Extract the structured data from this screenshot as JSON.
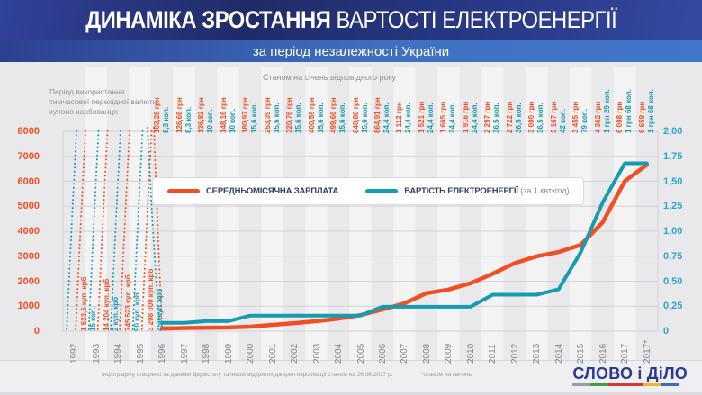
{
  "header": {
    "title_bold": "ДИНАМІКА ЗРОСТАННЯ",
    "title_rest": " ВАРТОСТІ ЕЛЕКТРОЕНЕРГІЇ",
    "subtitle": "за період незалежності України"
  },
  "annotations": {
    "transition_note": "Період використання тимчасової перехідної валюти купоно-карбованця",
    "as_of_note": "Станом на січень відповідного року",
    "footnote": "*станом на квітень",
    "source": "Інфографіку створено за даними Держстату та інших відкритих джерел інформації станом на 26.06.2017 р."
  },
  "legend": {
    "salary": "СЕРЕДНЬОМІСЯЧНА ЗАРПЛАТА",
    "electricity": "ВАРТІСТЬ ЕЛЕКТРОЕНЕРГІЇ",
    "electricity_unit": " (за 1 квт•год)"
  },
  "logo": {
    "text": "СЛОВО і ДіЛО",
    "color": "#2b3990",
    "stripe_colors": [
      "#999da0",
      "#43a047",
      "#d4393d",
      "#d4393d",
      "#f0b32e",
      "#3c6eb5"
    ]
  },
  "colors": {
    "salary": "#f04f23",
    "electricity": "#169cae",
    "header_navy": "#202b68",
    "subtitle_blue": "#3f71c1",
    "grid": "#d2d2d7",
    "muted_text": "#8f8f97",
    "left_axis_text": "#f04f23",
    "right_axis_text": "#2da7c7"
  },
  "chart_data": {
    "type": "line",
    "title": "ДИНАМІКА ЗРОСТАННЯ ВАРТОСТІ ЕЛЕКТРОЕНЕРГІЇ за період незалежності України",
    "categories": [
      "1992",
      "1993",
      "1994",
      "1995",
      "1996",
      "1997",
      "1998",
      "1999",
      "2000",
      "2001",
      "2002",
      "2003",
      "2004",
      "2005",
      "2006",
      "2007",
      "2008",
      "2009",
      "2010",
      "2011",
      "2012",
      "2013",
      "2014",
      "2015",
      "2016",
      "2017",
      "2017*"
    ],
    "left_axis": {
      "label_color": "#f04f23",
      "min": 0,
      "max": 8000,
      "ticks": [
        0,
        1000,
        2000,
        3000,
        4000,
        5000,
        6000,
        7000,
        8000
      ]
    },
    "right_axis": {
      "label_color": "#2da7c7",
      "min": 0,
      "max": 2,
      "tick_labels": [
        "0",
        "0,25",
        "0,50",
        "0,75",
        "1,00",
        "1,25",
        "1,50",
        "1,75",
        "2,00"
      ]
    },
    "grid": true,
    "legend_position": "inside-top-center",
    "series": [
      {
        "name": "СЕРЕДНЬОМІСЯЧНА ЗАРПЛАТА",
        "axis": "left",
        "unit": "грн",
        "color": "#f04f23",
        "values": [
          null,
          null,
          null,
          null,
          103.28,
          126.68,
          136.82,
          148.16,
          180.97,
          253.39,
          320.76,
          400.59,
          499.66,
          640.86,
          864.91,
          1112,
          1521,
          1665,
          1916,
          2297,
          2722,
          3000,
          3167,
          3455,
          4362,
          6008,
          6659
        ]
      },
      {
        "name": "ВАРТІСТЬ ЕЛЕКТРОЕНЕРГІЇ (за 1 квт•год)",
        "axis": "right",
        "unit": "грн/кВт·год",
        "color": "#169cae",
        "values": [
          null,
          null,
          null,
          null,
          0.083,
          0.083,
          0.1,
          0.1,
          0.156,
          0.156,
          0.156,
          0.156,
          0.156,
          0.156,
          0.244,
          0.244,
          0.244,
          0.244,
          0.244,
          0.365,
          0.365,
          0.365,
          0.42,
          0.79,
          1.29,
          1.68,
          1.68
        ]
      }
    ],
    "point_labels": [
      {
        "year": "1996",
        "salary": "103,28 грн",
        "electricity": "8,3 коп."
      },
      {
        "year": "1997",
        "salary": "126,68 грн",
        "electricity": "8,3 коп."
      },
      {
        "year": "1998",
        "salary": "136,82 грн",
        "electricity": "10 коп."
      },
      {
        "year": "1999",
        "salary": "148,16 грн",
        "electricity": "10 коп."
      },
      {
        "year": "2000",
        "salary": "180,97 грн",
        "electricity": "15,6 коп."
      },
      {
        "year": "2001",
        "salary": "253,39 грн",
        "electricity": "15,6 коп."
      },
      {
        "year": "2002",
        "salary": "320,76 грн",
        "electricity": "15,6 коп."
      },
      {
        "year": "2003",
        "salary": "400,59 грн",
        "electricity": "15,6 коп."
      },
      {
        "year": "2004",
        "salary": "499,66 грн",
        "electricity": "15,6 коп."
      },
      {
        "year": "2005",
        "salary": "640,86 грн",
        "electricity": "15,6 коп."
      },
      {
        "year": "2006",
        "salary": "864,91 грн",
        "electricity": "24,4 коп."
      },
      {
        "year": "2007",
        "salary": "1 112 грн",
        "electricity": "24,4 коп."
      },
      {
        "year": "2008",
        "salary": "1 521 грн",
        "electricity": "24,4 коп."
      },
      {
        "year": "2009",
        "salary": "1 665 грн",
        "electricity": "24,4 коп."
      },
      {
        "year": "2010",
        "salary": "1 916 грн",
        "electricity": "24,4 коп."
      },
      {
        "year": "2011",
        "salary": "2 297 грн",
        "electricity": "36,5 коп."
      },
      {
        "year": "2012",
        "salary": "2 722 грн",
        "electricity": "36,5 коп."
      },
      {
        "year": "2013",
        "salary": "3 000 грн",
        "electricity": "36,5 коп."
      },
      {
        "year": "2014",
        "salary": "3 167 грн",
        "electricity": "42 коп."
      },
      {
        "year": "2015",
        "salary": "3 455 грн",
        "electricity": "79 коп."
      },
      {
        "year": "2016",
        "salary": "4 362 грн",
        "electricity": "1 грн 29 коп."
      },
      {
        "year": "2017",
        "salary": "6 008 грн",
        "electricity": "1 грн 68 коп."
      },
      {
        "year": "2017*",
        "salary": "6 659 грн",
        "electricity": "1 грн 68 коп."
      }
    ],
    "kupon_era": [
      {
        "year": "1992",
        "salary": "1 523,5 куп. крб",
        "salary_value": 1523.5,
        "electricity": "15 коп.",
        "electricity_value": 0.15
      },
      {
        "year": "1993",
        "salary": "14 204 куп. крб",
        "salary_value": 14204,
        "electricity": "2 куп. крб",
        "electricity_value": 2
      },
      {
        "year": "1994",
        "salary": "745 523 куп. крб",
        "salary_value": 745523,
        "electricity": "90 куп. крб",
        "electricity_value": 90
      },
      {
        "year": "1995",
        "salary": "3 208 000 куп. крб",
        "salary_value": 3208000,
        "electricity": "450 куп. крб",
        "electricity_value": 450
      }
    ]
  }
}
